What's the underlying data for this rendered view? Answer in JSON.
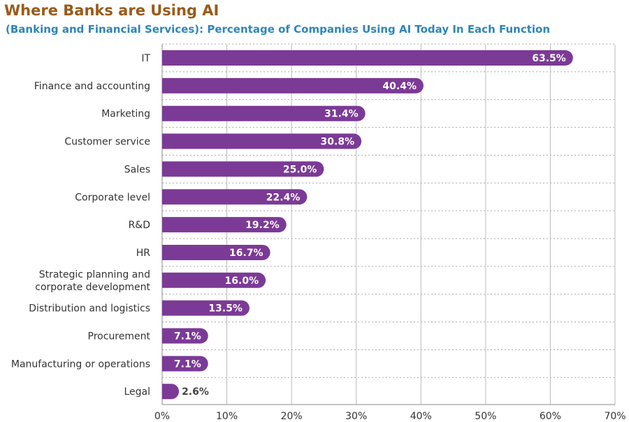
{
  "chart_data": {
    "type": "bar",
    "orientation": "horizontal",
    "title": "Where Banks are Using AI",
    "subtitle": "(Banking and Financial Services): Percentage of Companies Using AI Today In Each Function",
    "categories": [
      "IT",
      "Finance and accounting",
      "Marketing",
      "Customer service",
      "Sales",
      "Corporate level",
      "R&D",
      "HR",
      [
        "Strategic planning and",
        "corporate development"
      ],
      "Distribution and logistics",
      "Procurement",
      "Manufacturing or operations",
      "Legal"
    ],
    "values": [
      63.5,
      40.4,
      31.4,
      30.8,
      25.0,
      22.4,
      19.2,
      16.7,
      16.0,
      13.5,
      7.1,
      7.1,
      2.6
    ],
    "value_labels": [
      "63.5%",
      "40.4%",
      "31.4%",
      "30.8%",
      "25.0%",
      "22.4%",
      "19.2%",
      "16.7%",
      "16.0%",
      "13.5%",
      "7.1%",
      "7.1%",
      "2.6%"
    ],
    "xlim": [
      0,
      70
    ],
    "xticks": [
      0,
      10,
      20,
      30,
      40,
      50,
      60,
      70
    ],
    "xtick_labels": [
      "0%",
      "10%",
      "20%",
      "30%",
      "40%",
      "50%",
      "60%",
      "70%"
    ],
    "grid": true,
    "colors": {
      "bar": "#7b3a96",
      "label_inside": "#ffffff",
      "label_outside": "#444444",
      "grid": "#bbbbbb"
    }
  }
}
